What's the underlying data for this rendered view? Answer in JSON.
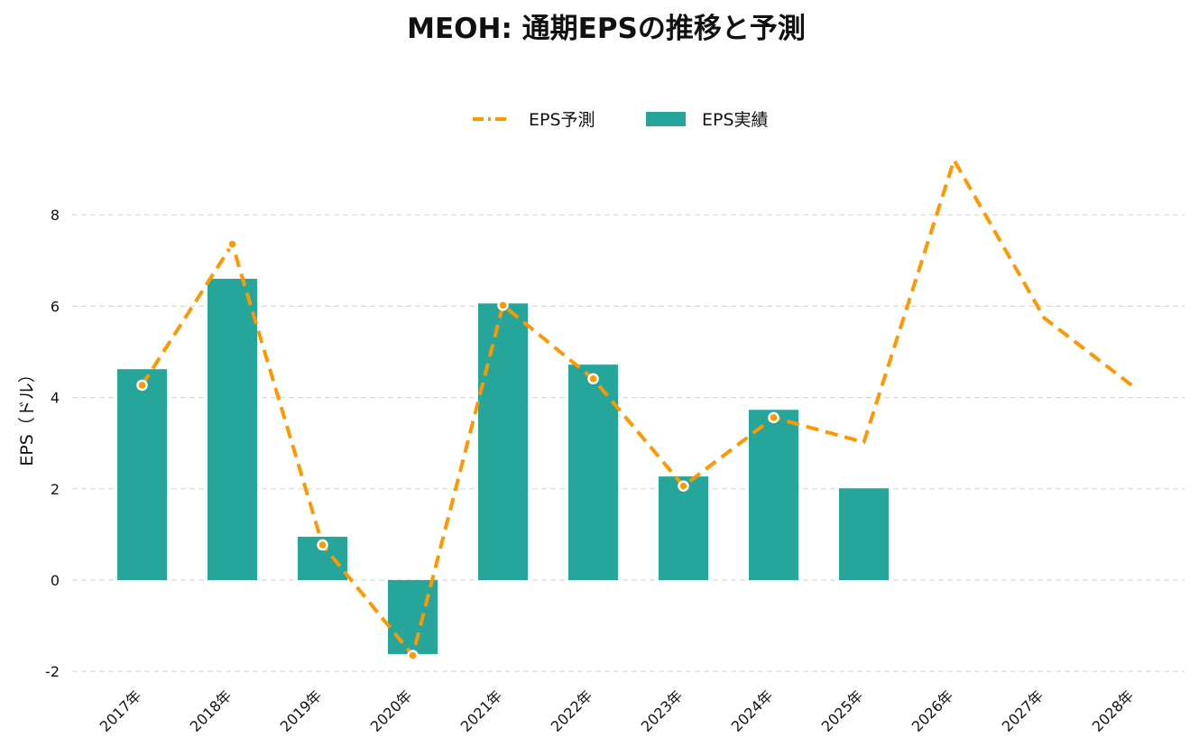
{
  "chart_data": {
    "type": "bar",
    "title": "MEOH: 通期EPSの推移と予測",
    "xlabel": "",
    "ylabel": "EPS（ドル）",
    "categories": [
      "2017年",
      "2018年",
      "2019年",
      "2020年",
      "2021年",
      "2022年",
      "2023年",
      "2024年",
      "2025年",
      "2026年",
      "2027年",
      "2028年"
    ],
    "yticks": [
      "-2",
      "0",
      "2",
      "4",
      "6",
      "8"
    ],
    "ylim": [
      -2.0,
      9.2
    ],
    "grid": true,
    "legend_position": "top-center",
    "series": [
      {
        "name": "EPS実績",
        "kind": "bar",
        "color": "#26a69a",
        "values": [
          4.62,
          6.6,
          0.95,
          -1.62,
          6.06,
          4.72,
          2.27,
          3.73,
          2.01,
          null,
          null,
          null
        ]
      },
      {
        "name": "EPS予測",
        "kind": "line",
        "style": "dashed",
        "color": "#ff9800",
        "values": [
          4.27,
          7.36,
          0.77,
          -1.65,
          6.02,
          4.41,
          2.06,
          3.56,
          3.02,
          9.2,
          5.74,
          4.22
        ],
        "marker_count": 8
      }
    ]
  }
}
